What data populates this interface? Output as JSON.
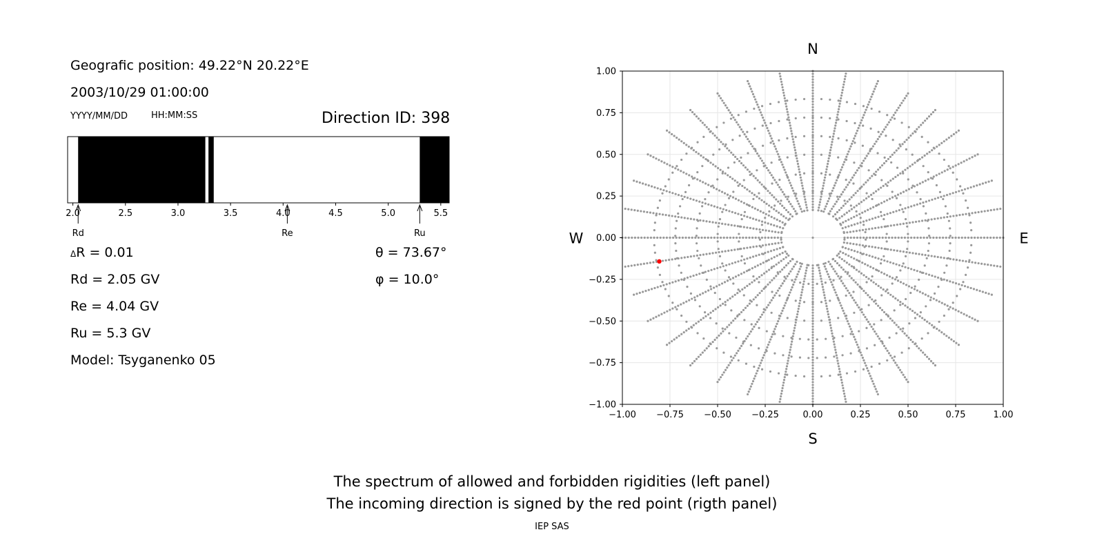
{
  "info": {
    "position": "Geografic position: 49.22°N 20.22°E",
    "datetime": "2003/10/29 01:00:00",
    "date_format": "YYYY/MM/DD",
    "time_format": "HH:MM:SS",
    "direction_id": "Direction ID: 398"
  },
  "params": {
    "dR": "R = 0.01",
    "dR_symbol": "Δ",
    "Rd": "Rd = 2.05 GV",
    "Re": "Re = 4.04 GV",
    "Ru": "Ru = 5.3 GV",
    "model": "Model: Tsyganenko 05",
    "theta": "θ = 73.67°",
    "phi": "φ = 10.0°"
  },
  "footer": {
    "line1": "The spectrum of allowed and forbidden rigidities (left panel)",
    "line2": "The incoming direction is signed by the red point (rigth panel)",
    "credit": "IEP SAS"
  },
  "chart_data": [
    {
      "type": "bar",
      "description_role": "rigidity spectrum (black = forbidden, white = allowed)",
      "xlim": [
        1.95,
        5.58
      ],
      "x_ticks": [
        "2.0",
        "2.5",
        "3.0",
        "3.5",
        "4.0",
        "4.5",
        "5.0",
        "5.5"
      ],
      "x_tick_values": [
        2.0,
        2.5,
        3.0,
        3.5,
        4.0,
        4.5,
        5.0,
        5.5
      ],
      "forbidden_bands": [
        [
          2.05,
          3.26
        ],
        [
          3.29,
          3.34
        ],
        [
          5.3,
          5.58
        ]
      ],
      "markers": [
        {
          "label": "Rd",
          "value": 2.05
        },
        {
          "label": "Re",
          "value": 4.04
        },
        {
          "label": "Ru",
          "value": 5.3
        }
      ]
    },
    {
      "type": "scatter",
      "description_role": "incoming direction map",
      "xlim": [
        -1.0,
        1.0
      ],
      "ylim": [
        -1.0,
        1.0
      ],
      "x_ticks": [
        "−1.00",
        "−0.75",
        "−0.50",
        "−0.25",
        "0.00",
        "0.25",
        "0.50",
        "0.75",
        "1.00"
      ],
      "y_ticks": [
        "1.00",
        "0.75",
        "0.50",
        "0.25",
        "0.00",
        "−0.25",
        "−0.50",
        "−0.75",
        "−1.00"
      ],
      "tick_values": [
        -1.0,
        -0.75,
        -0.5,
        -0.25,
        0.0,
        0.25,
        0.5,
        0.75,
        1.0
      ],
      "compass": {
        "north": "N",
        "south": "S",
        "west": "W",
        "east": "E"
      },
      "grid": true,
      "grid_pattern": {
        "rings_zenith_deg": [
          15,
          25,
          35,
          45,
          55,
          65,
          75
        ],
        "rays_azimuth_step_deg": 10,
        "ray_zenith_range_deg": [
          15,
          90
        ],
        "ray_zenith_step_deg": 1.5
      },
      "point_color": "#999999",
      "highlight": {
        "theta_deg": 73.67,
        "phi_deg": 10.0,
        "color": "#ff0000"
      }
    }
  ]
}
